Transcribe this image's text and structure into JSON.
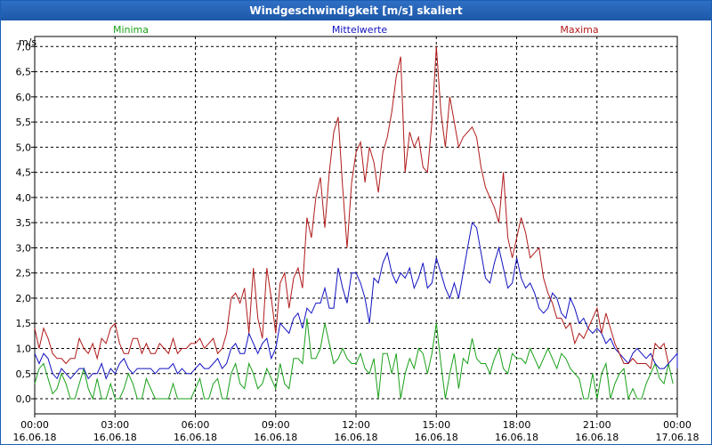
{
  "window": {
    "title": "Windgeschwindigkeit [m/s] skaliert"
  },
  "chart_data": {
    "type": "line",
    "title": "Windgeschwindigkeit [m/s] skaliert",
    "ylabel": "m/s",
    "xlabel": "",
    "ylim": [
      -0.3,
      7.2
    ],
    "xlim": [
      0,
      24
    ],
    "grid": true,
    "legend_placement": "top",
    "colors": {
      "Minima": "#19a019",
      "Mittelwerte": "#1111c0",
      "Maxima": "#b01a1a"
    },
    "y_ticks": [
      "0,0",
      "0,5",
      "1,0",
      "1,5",
      "2,0",
      "2,5",
      "3,0",
      "3,5",
      "4,0",
      "4,5",
      "5,0",
      "5,5",
      "6,0",
      "6,5",
      "7,0"
    ],
    "x_ticks": [
      {
        "time": "00:00",
        "date": "16.06.18"
      },
      {
        "time": "03:00",
        "date": "16.06.18"
      },
      {
        "time": "06:00",
        "date": "16.06.18"
      },
      {
        "time": "09:00",
        "date": "16.06.18"
      },
      {
        "time": "12:00",
        "date": "16.06.18"
      },
      {
        "time": "15:00",
        "date": "16.06.18"
      },
      {
        "time": "18:00",
        "date": "16.06.18"
      },
      {
        "time": "21:00",
        "date": "16.06.18"
      },
      {
        "time": "00:00",
        "date": "17.06.18"
      }
    ],
    "series": [
      {
        "name": "Minima",
        "x_hours_step": 0.1667,
        "values": [
          0.3,
          0.6,
          0.7,
          0.4,
          0.1,
          0.2,
          0.5,
          0.3,
          0.0,
          0.0,
          0.3,
          0.6,
          0.2,
          0.0,
          0.4,
          0.0,
          0.0,
          0.3,
          0.0,
          0.0,
          0.2,
          0.5,
          0.3,
          0.0,
          0.0,
          0.4,
          0.2,
          0.0,
          0.0,
          0.0,
          0.0,
          0.3,
          0.0,
          0.0,
          0.0,
          0.0,
          0.2,
          0.4,
          0.0,
          0.0,
          0.3,
          0.4,
          0.0,
          0.0,
          0.5,
          0.7,
          0.3,
          0.2,
          0.7,
          0.5,
          0.2,
          0.3,
          0.6,
          0.4,
          0.2,
          0.7,
          0.3,
          0.2,
          0.8,
          0.8,
          0.7,
          1.6,
          0.8,
          0.8,
          1.0,
          1.5,
          1.1,
          0.7,
          0.8,
          1.0,
          0.8,
          0.7,
          0.7,
          0.9,
          0.6,
          0.5,
          0.8,
          0.0,
          0.9,
          0.9,
          0.5,
          0.9,
          0.0,
          0.5,
          0.8,
          0.6,
          1.0,
          0.9,
          0.5,
          0.9,
          1.5,
          0.7,
          0.0,
          0.5,
          0.9,
          0.2,
          0.8,
          0.7,
          1.2,
          0.8,
          0.7,
          0.7,
          0.5,
          0.8,
          1.0,
          0.6,
          0.5,
          0.9,
          0.8,
          0.8,
          0.7,
          1.0,
          0.8,
          0.6,
          0.8,
          1.0,
          0.8,
          0.6,
          0.9,
          0.8,
          0.6,
          0.5,
          0.4,
          0.0,
          0.0,
          0.5,
          0.0,
          0.5,
          0.7,
          0.0,
          0.3,
          0.5,
          0.6,
          0.0,
          0.2,
          0.0,
          0.0,
          0.3,
          0.5,
          0.7,
          0.4,
          0.3,
          0.7,
          0.3
        ]
      },
      {
        "name": "Mittelwerte",
        "x_hours_step": 0.1667,
        "values": [
          0.9,
          0.7,
          0.9,
          0.8,
          0.5,
          0.4,
          0.6,
          0.5,
          0.4,
          0.5,
          0.6,
          0.6,
          0.4,
          0.5,
          0.5,
          0.7,
          0.4,
          0.6,
          0.5,
          0.7,
          0.8,
          0.6,
          0.5,
          0.6,
          0.6,
          0.6,
          0.6,
          0.5,
          0.6,
          0.6,
          0.6,
          0.7,
          0.5,
          0.6,
          0.5,
          0.5,
          0.6,
          0.7,
          0.6,
          0.6,
          0.7,
          0.8,
          0.6,
          0.7,
          1.0,
          1.1,
          0.9,
          0.9,
          1.3,
          1.1,
          0.9,
          1.1,
          1.2,
          0.8,
          1.0,
          1.5,
          1.4,
          1.3,
          1.6,
          1.7,
          1.4,
          1.8,
          1.7,
          1.9,
          1.9,
          2.2,
          1.8,
          1.8,
          2.6,
          2.2,
          1.9,
          2.5,
          2.5,
          2.3,
          2.0,
          1.5,
          2.4,
          2.3,
          2.7,
          2.9,
          2.5,
          2.3,
          2.5,
          2.4,
          2.6,
          2.2,
          2.4,
          2.7,
          2.2,
          2.3,
          2.8,
          2.5,
          2.2,
          2.0,
          2.3,
          2.0,
          2.5,
          3.0,
          3.5,
          3.4,
          2.9,
          2.4,
          2.3,
          2.7,
          3.0,
          2.6,
          2.2,
          2.3,
          2.8,
          2.4,
          2.2,
          2.3,
          2.1,
          1.8,
          1.7,
          1.8,
          2.1,
          2.0,
          1.7,
          1.6,
          2.0,
          1.8,
          1.5,
          1.6,
          1.4,
          1.3,
          1.4,
          1.3,
          1.1,
          1.2,
          1.0,
          0.9,
          0.8,
          0.7,
          0.9,
          1.0,
          0.9,
          0.8,
          0.9,
          0.7,
          0.6,
          0.6,
          0.7,
          0.8,
          0.9,
          0.6
        ]
      },
      {
        "name": "Maxima",
        "x_hours_step": 0.1667,
        "values": [
          1.4,
          1.0,
          1.4,
          1.2,
          0.9,
          0.8,
          0.8,
          0.7,
          0.8,
          0.8,
          1.2,
          1.0,
          0.9,
          1.1,
          0.8,
          1.2,
          1.1,
          1.4,
          1.5,
          1.1,
          0.9,
          0.9,
          1.2,
          1.2,
          0.9,
          1.1,
          0.9,
          0.9,
          1.1,
          1.0,
          0.9,
          1.2,
          0.9,
          1.0,
          1.0,
          1.1,
          1.1,
          1.2,
          1.0,
          1.1,
          1.2,
          0.9,
          1.0,
          1.3,
          2.0,
          2.1,
          1.9,
          2.2,
          1.3,
          2.6,
          1.6,
          1.2,
          2.6,
          2.0,
          1.3,
          2.3,
          2.5,
          1.8,
          2.4,
          2.6,
          2.2,
          3.6,
          3.2,
          4.0,
          4.4,
          3.4,
          4.5,
          5.3,
          5.6,
          4.2,
          3.0,
          4.3,
          4.9,
          5.1,
          4.3,
          5.0,
          4.7,
          4.1,
          4.9,
          5.2,
          5.7,
          6.4,
          6.8,
          4.5,
          5.3,
          5.0,
          5.2,
          4.6,
          4.5,
          5.5,
          7.0,
          5.7,
          5.0,
          6.0,
          5.5,
          5.0,
          5.2,
          5.3,
          5.4,
          5.2,
          4.6,
          4.2,
          4.0,
          3.8,
          3.5,
          4.5,
          3.2,
          2.8,
          3.2,
          3.6,
          3.3,
          2.8,
          2.9,
          3.0,
          2.4,
          2.1,
          1.9,
          1.6,
          1.6,
          1.4,
          1.5,
          1.1,
          1.3,
          1.2,
          1.4,
          1.6,
          1.8,
          1.3,
          1.7,
          1.4,
          1.1,
          0.9,
          0.7,
          0.7,
          0.8,
          0.7,
          0.7,
          0.7,
          0.6,
          1.1,
          1.0,
          1.1,
          0.7
        ]
      }
    ]
  }
}
